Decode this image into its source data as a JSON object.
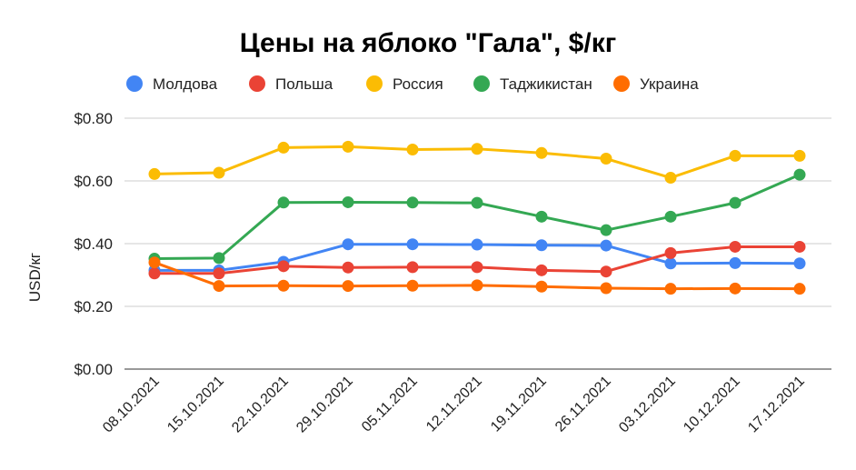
{
  "chart_data": {
    "type": "line",
    "title": "Цены на яблоко \"Гала\", $/кг",
    "ylabel": "USD/кг",
    "xlabel": "",
    "ylim": [
      0,
      0.8
    ],
    "yticks": [
      0,
      0.2,
      0.4,
      0.6,
      0.8
    ],
    "ytick_labels": [
      "$0.00",
      "$0.20",
      "$0.40",
      "$0.60",
      "$0.80"
    ],
    "legend_position": "top",
    "grid": true,
    "categories": [
      "08.10.2021",
      "15.10.2021",
      "22.10.2021",
      "29.10.2021",
      "05.11.2021",
      "12.11.2021",
      "19.11.2021",
      "26.11.2021",
      "03.12.2021",
      "10.12.2021",
      "17.12.2021"
    ],
    "series": [
      {
        "name": "Молдова",
        "color": "#4285F4",
        "values": [
          0.315,
          0.315,
          0.342,
          0.398,
          0.398,
          0.397,
          0.395,
          0.394,
          0.337,
          0.338,
          0.337
        ]
      },
      {
        "name": "Польша",
        "color": "#EA4335",
        "values": [
          0.305,
          0.305,
          0.328,
          0.324,
          0.325,
          0.325,
          0.315,
          0.311,
          0.37,
          0.39,
          0.39
        ]
      },
      {
        "name": "Россия",
        "color": "#FBBC04",
        "values": [
          0.622,
          0.626,
          0.706,
          0.709,
          0.7,
          0.702,
          0.689,
          0.671,
          0.61,
          0.68,
          0.68
        ]
      },
      {
        "name": "Таджикистан",
        "color": "#34A853",
        "values": [
          0.352,
          0.354,
          0.531,
          0.532,
          0.531,
          0.53,
          0.486,
          0.443,
          0.486,
          0.53,
          0.62
        ]
      },
      {
        "name": "Украина",
        "color": "#FF6D01",
        "values": [
          0.34,
          0.265,
          0.266,
          0.265,
          0.266,
          0.267,
          0.263,
          0.258,
          0.256,
          0.257,
          0.256
        ]
      }
    ]
  }
}
